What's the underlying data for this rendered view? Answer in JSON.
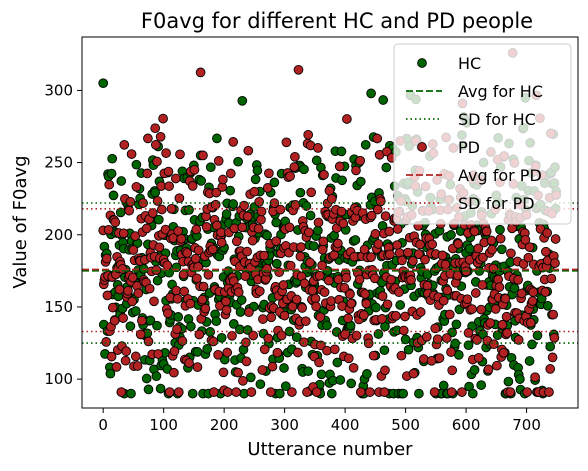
{
  "chart_data": {
    "type": "scatter",
    "title": "F0avg for different HC and PD people",
    "xlabel": "Utterance number",
    "ylabel": "Value of F0avg",
    "xlim": [
      -35,
      785
    ],
    "ylim": [
      80,
      337
    ],
    "x_ticks": [
      0,
      100,
      200,
      300,
      400,
      500,
      600,
      700
    ],
    "y_ticks": [
      100,
      150,
      200,
      250,
      300
    ],
    "legend_position": "top-right",
    "grid": false,
    "series": [
      {
        "name": "HC",
        "color": "#006400",
        "n_points": 750,
        "x_range": [
          0,
          749
        ],
        "y_range": [
          90,
          305
        ],
        "mean": 175,
        "sd_lower": 125,
        "sd_upper": 222
      },
      {
        "name": "PD",
        "color": "#b22222",
        "n_points": 750,
        "x_range": [
          0,
          749
        ],
        "y_range": [
          91,
          326
        ],
        "mean": 176,
        "sd_lower": 133,
        "sd_upper": 218
      }
    ],
    "reference_lines": [
      {
        "name": "Avg for HC",
        "y": 175,
        "color": "#006400",
        "style": "dashed"
      },
      {
        "name": "SD for HC",
        "y": 125,
        "color": "#006400",
        "style": "dotted"
      },
      {
        "name": "SD for HC",
        "y": 222,
        "color": "#006400",
        "style": "dotted"
      },
      {
        "name": "Avg for PD",
        "y": 176,
        "color": "#b22222",
        "style": "dashed"
      },
      {
        "name": "SD for PD",
        "y": 133,
        "color": "#b22222",
        "style": "dotted"
      },
      {
        "name": "SD for PD",
        "y": 218,
        "color": "#b22222",
        "style": "dotted"
      }
    ],
    "legend": [
      {
        "label": "HC",
        "kind": "marker",
        "color": "#006400"
      },
      {
        "label": "Avg for HC",
        "kind": "dashed",
        "color": "#006400"
      },
      {
        "label": "SD for HC",
        "kind": "dotted",
        "color": "#006400"
      },
      {
        "label": "PD",
        "kind": "marker",
        "color": "#b22222"
      },
      {
        "label": "Avg for PD",
        "kind": "dashed",
        "color": "#b22222"
      },
      {
        "label": "SD for PD",
        "kind": "dotted",
        "color": "#b22222"
      }
    ]
  }
}
